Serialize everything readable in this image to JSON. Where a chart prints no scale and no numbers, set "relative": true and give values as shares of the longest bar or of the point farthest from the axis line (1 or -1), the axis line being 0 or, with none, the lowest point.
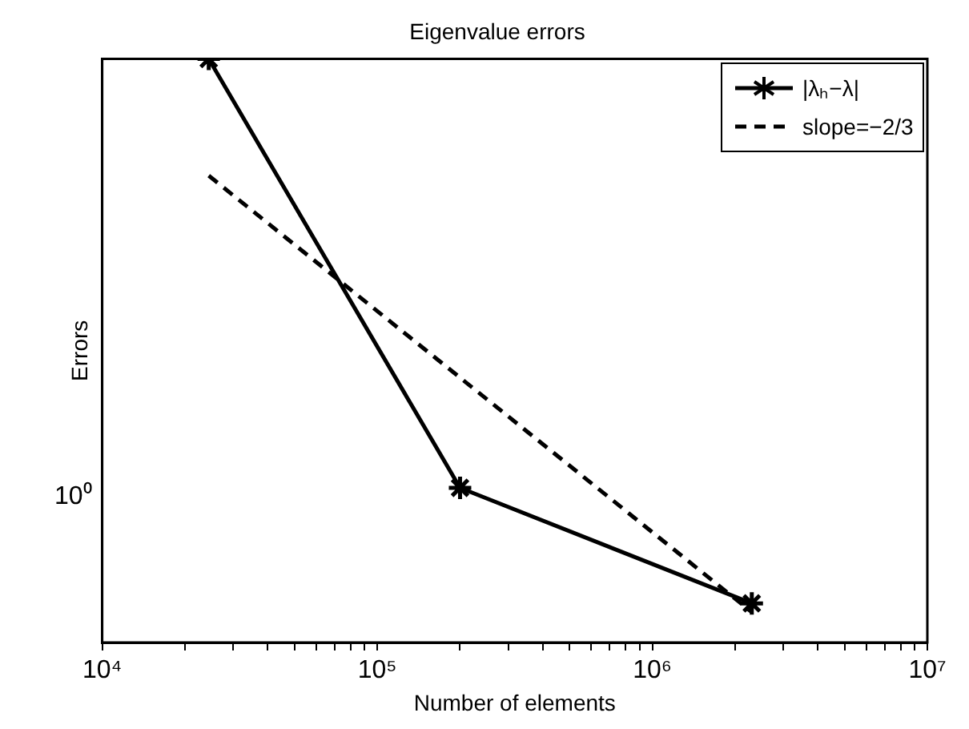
{
  "chart_data": {
    "type": "line",
    "title": "Eigenvalue errors",
    "xlabel": "Number of elements",
    "ylabel": "Errors",
    "log": "x",
    "grid": false,
    "legend": "top right",
    "xlim": [
      10000,
      10000000
    ],
    "xticks": [
      {
        "value": 10000,
        "label": "10⁴"
      },
      {
        "value": 20000,
        "label": null
      },
      {
        "value": 30000,
        "label": null
      },
      {
        "value": 40000,
        "label": null
      },
      {
        "value": 50000,
        "label": null
      },
      {
        "value": 60000,
        "label": null
      },
      {
        "value": 70000,
        "label": null
      },
      {
        "value": 80000,
        "label": null
      },
      {
        "value": 90000,
        "label": null
      },
      {
        "value": 100000,
        "label": "10⁵"
      },
      {
        "value": 200000,
        "label": null
      },
      {
        "value": 300000,
        "label": null
      },
      {
        "value": 400000,
        "label": null
      },
      {
        "value": 500000,
        "label": null
      },
      {
        "value": 600000,
        "label": null
      },
      {
        "value": 700000,
        "label": null
      },
      {
        "value": 800000,
        "label": null
      },
      {
        "value": 900000,
        "label": null
      },
      {
        "value": 1000000,
        "label": "10⁶"
      },
      {
        "value": 2000000,
        "label": null
      },
      {
        "value": 3000000,
        "label": null
      },
      {
        "value": 4000000,
        "label": null
      },
      {
        "value": 5000000,
        "label": null
      },
      {
        "value": 6000000,
        "label": null
      },
      {
        "value": 7000000,
        "label": null
      },
      {
        "value": 8000000,
        "label": null
      },
      {
        "value": 9000000,
        "label": null
      },
      {
        "value": 10000000,
        "label": "10⁷"
      }
    ],
    "relative": true,
    "annotations": [
      "10⁰"
    ],
    "series": [
      {
        "name": "|λₕ−λ|",
        "color": "#000000",
        "marker": "cross",
        "line_style": "solid",
        "x": [
          24400,
          200000,
          2300000
        ],
        "values": [
          1,
          0.265,
          0.067
        ]
      },
      {
        "name": "slope=−2/3",
        "color": "#000000",
        "marker": "none",
        "line_style": "dashed",
        "x": [
          24400,
          2300000
        ],
        "values": [
          0.8,
          0.052
        ]
      }
    ]
  }
}
